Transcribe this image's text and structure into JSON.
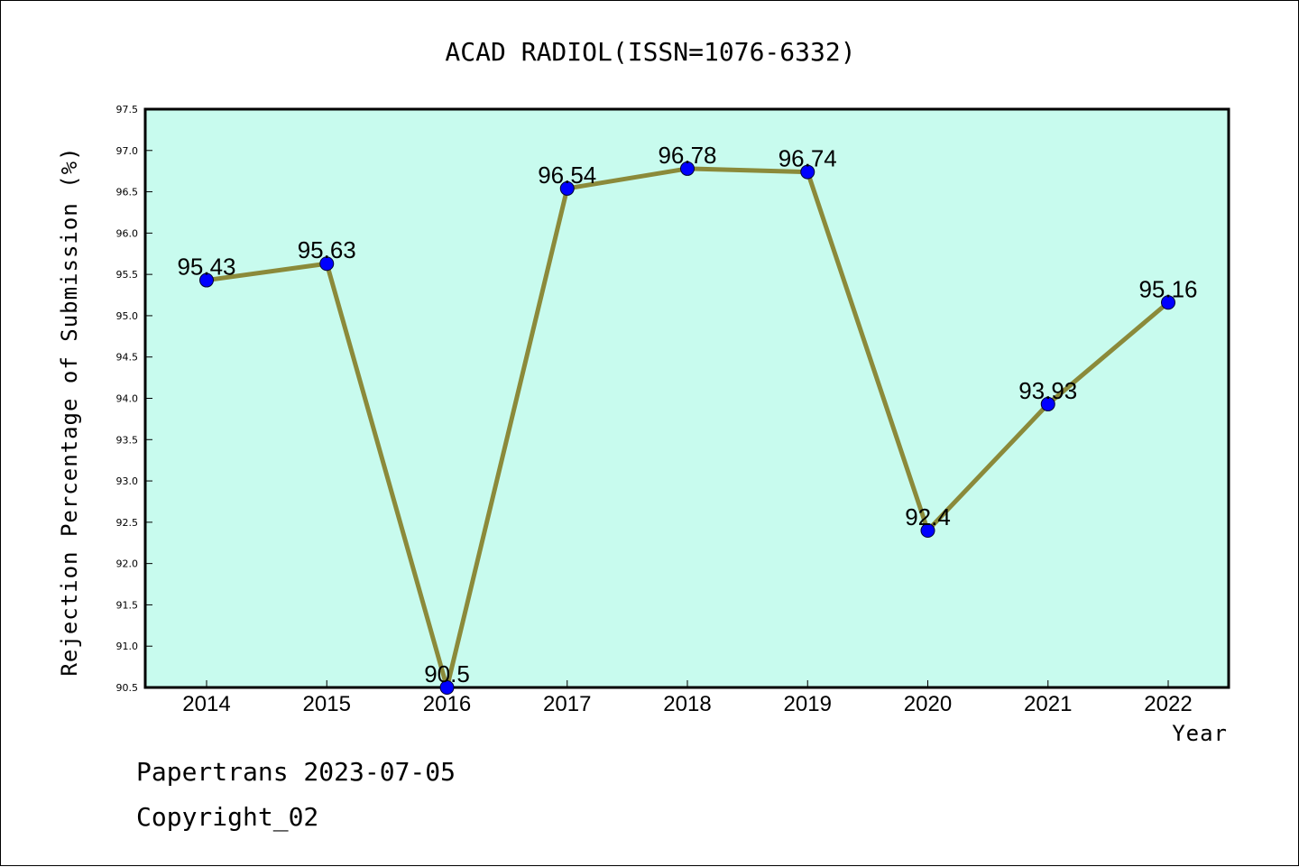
{
  "chart_data": {
    "type": "line",
    "title": "ACAD RADIOL(ISSN=1076-6332)",
    "xlabel": "Year",
    "ylabel": "Rejection Percentage of Submission (%)",
    "categories": [
      "2014",
      "2015",
      "2016",
      "2017",
      "2018",
      "2019",
      "2020",
      "2021",
      "2022"
    ],
    "values": [
      95.43,
      95.63,
      90.5,
      96.54,
      96.78,
      96.74,
      92.4,
      93.93,
      95.16
    ],
    "value_labels": [
      "95.43",
      "95.63",
      "90.5",
      "96.54",
      "96.78",
      "96.74",
      "92.4",
      "93.93",
      "95.16"
    ],
    "ylim": [
      90.5,
      97.5
    ],
    "yticks": [
      "90.5",
      "91.0",
      "91.5",
      "92.0",
      "92.5",
      "93.0",
      "93.5",
      "94.0",
      "94.5",
      "95.0",
      "95.5",
      "96.0",
      "96.5",
      "97.0",
      "97.5"
    ],
    "grid": false,
    "colors": {
      "plot_background": "#c8fbee",
      "line": "#8b8a3a",
      "marker": "#0000ff"
    }
  },
  "footer": {
    "source": "Papertrans 2023-07-05",
    "copyright": "Copyright_02"
  }
}
